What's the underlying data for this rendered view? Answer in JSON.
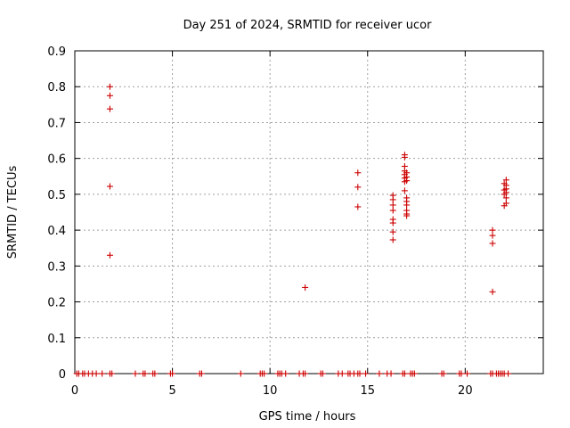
{
  "chart_data": {
    "type": "scatter",
    "title": "Day 251 of 2024, SRMTID for receiver ucor",
    "xlabel": "GPS time / hours",
    "ylabel": "SRMTID / TECUs",
    "xlim": [
      0,
      24
    ],
    "ylim": [
      0,
      0.9
    ],
    "x_ticks": [
      0,
      5,
      10,
      15,
      20
    ],
    "y_ticks": [
      0,
      0.1,
      0.2,
      0.3,
      0.4,
      0.5,
      0.6,
      0.7,
      0.8,
      0.9
    ],
    "grid": true,
    "marker": "+",
    "color": "#cc0000",
    "series": [
      {
        "name": "SRMTID",
        "points": [
          [
            1.8,
            0.8
          ],
          [
            1.8,
            0.775
          ],
          [
            1.8,
            0.738
          ],
          [
            1.8,
            0.522
          ],
          [
            1.8,
            0.33
          ],
          [
            11.8,
            0.24
          ],
          [
            14.5,
            0.56
          ],
          [
            14.5,
            0.52
          ],
          [
            14.5,
            0.465
          ],
          [
            16.3,
            0.497
          ],
          [
            16.3,
            0.485
          ],
          [
            16.3,
            0.47
          ],
          [
            16.3,
            0.455
          ],
          [
            16.3,
            0.43
          ],
          [
            16.3,
            0.42
          ],
          [
            16.3,
            0.395
          ],
          [
            16.3,
            0.373
          ],
          [
            16.9,
            0.61
          ],
          [
            16.9,
            0.603
          ],
          [
            16.9,
            0.578
          ],
          [
            16.9,
            0.565
          ],
          [
            16.9,
            0.555
          ],
          [
            16.9,
            0.545
          ],
          [
            16.9,
            0.535
          ],
          [
            16.9,
            0.51
          ],
          [
            17.0,
            0.56
          ],
          [
            17.0,
            0.548
          ],
          [
            17.0,
            0.538
          ],
          [
            17.0,
            0.49
          ],
          [
            17.0,
            0.48
          ],
          [
            17.0,
            0.47
          ],
          [
            17.0,
            0.455
          ],
          [
            17.0,
            0.445
          ],
          [
            17.0,
            0.44
          ],
          [
            21.4,
            0.4
          ],
          [
            21.4,
            0.385
          ],
          [
            21.4,
            0.363
          ],
          [
            21.4,
            0.228
          ],
          [
            22.0,
            0.53
          ],
          [
            22.0,
            0.512
          ],
          [
            22.0,
            0.5
          ],
          [
            22.0,
            0.468
          ],
          [
            22.1,
            0.54
          ],
          [
            22.1,
            0.525
          ],
          [
            22.1,
            0.515
          ],
          [
            22.1,
            0.505
          ],
          [
            22.1,
            0.49
          ],
          [
            22.1,
            0.475
          ],
          [
            0.1,
            0
          ],
          [
            0.2,
            0
          ],
          [
            0.4,
            0
          ],
          [
            0.5,
            0
          ],
          [
            0.7,
            0
          ],
          [
            0.9,
            0
          ],
          [
            1.1,
            0
          ],
          [
            1.4,
            0
          ],
          [
            1.8,
            0
          ],
          [
            1.9,
            0
          ],
          [
            3.1,
            0
          ],
          [
            3.5,
            0
          ],
          [
            3.6,
            0
          ],
          [
            4.0,
            0
          ],
          [
            4.1,
            0
          ],
          [
            4.9,
            0
          ],
          [
            5.0,
            0
          ],
          [
            6.4,
            0
          ],
          [
            6.5,
            0
          ],
          [
            8.5,
            0
          ],
          [
            9.5,
            0
          ],
          [
            9.6,
            0
          ],
          [
            9.7,
            0
          ],
          [
            10.4,
            0
          ],
          [
            10.5,
            0
          ],
          [
            10.6,
            0
          ],
          [
            10.8,
            0
          ],
          [
            11.5,
            0
          ],
          [
            11.7,
            0
          ],
          [
            11.8,
            0
          ],
          [
            12.6,
            0
          ],
          [
            12.7,
            0
          ],
          [
            13.5,
            0
          ],
          [
            13.7,
            0
          ],
          [
            14.0,
            0
          ],
          [
            14.1,
            0
          ],
          [
            14.3,
            0
          ],
          [
            14.5,
            0
          ],
          [
            14.6,
            0
          ],
          [
            14.9,
            0
          ],
          [
            15.6,
            0
          ],
          [
            16.0,
            0
          ],
          [
            16.2,
            0
          ],
          [
            16.8,
            0
          ],
          [
            16.9,
            0
          ],
          [
            17.2,
            0
          ],
          [
            17.3,
            0
          ],
          [
            17.4,
            0
          ],
          [
            18.8,
            0
          ],
          [
            18.9,
            0
          ],
          [
            19.7,
            0
          ],
          [
            19.8,
            0
          ],
          [
            20.1,
            0
          ],
          [
            21.3,
            0
          ],
          [
            21.4,
            0
          ],
          [
            21.6,
            0
          ],
          [
            21.7,
            0
          ],
          [
            21.8,
            0
          ],
          [
            21.9,
            0
          ],
          [
            22.0,
            0
          ],
          [
            22.2,
            0
          ]
        ]
      }
    ]
  }
}
